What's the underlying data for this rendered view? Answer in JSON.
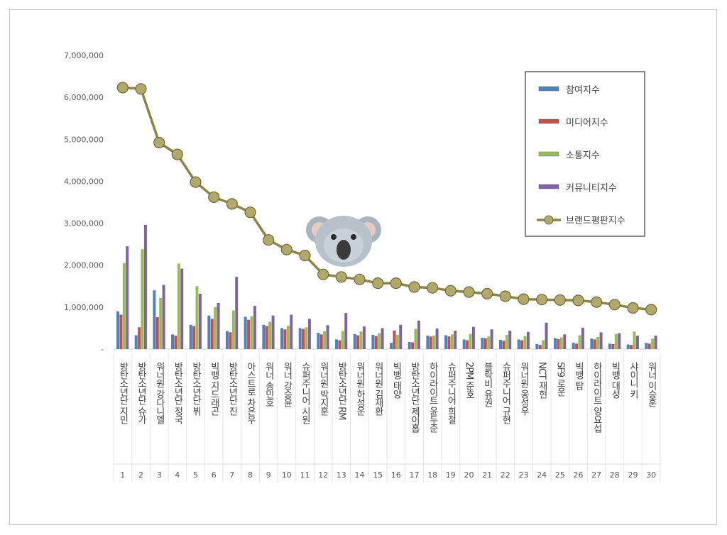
{
  "chart_data": {
    "type": "bar",
    "title": "",
    "xlabel": "",
    "ylabel": "",
    "ylim": [
      0,
      7000000
    ],
    "yticks": [
      "-",
      "1,000,000",
      "2,000,000",
      "3,000,000",
      "4,000,000",
      "5,000,000",
      "6,000,000",
      "7,000,000"
    ],
    "grid": false,
    "legend_position": "top-right",
    "ranks": [
      "1",
      "2",
      "3",
      "4",
      "5",
      "6",
      "7",
      "8",
      "9",
      "10",
      "11",
      "12",
      "13",
      "14",
      "15",
      "16",
      "17",
      "18",
      "19",
      "20",
      "21",
      "22",
      "23",
      "24",
      "25",
      "26",
      "27",
      "28",
      "29",
      "30"
    ],
    "categories": [
      "방탄소년단 지민",
      "방탄소년단 슈가",
      "워너원 강다니엘",
      "방탄소년단 정국",
      "방탄소년단 뷔",
      "빅뱅 지드래곤",
      "방탄소년단 진",
      "아스트로 차은우",
      "워너 송민호",
      "워너 강승윤",
      "슈퍼주니어 시원",
      "워너원 박지훈",
      "방탄소년단 RM",
      "워너원 하성운",
      "워너원 김재환",
      "빅뱅 태양",
      "방탄소년단 제이홉",
      "하이라이트 윤두준",
      "슈퍼주니어 희철",
      "2PM 준호",
      "블락비 유권",
      "슈퍼주니어 규현",
      "워너원 옹성우",
      "NCT 재현",
      "SF9 로운",
      "빅뱅 탑",
      "하이라이트 양요섭",
      "빅뱅 대성",
      "샤이니 키",
      "워너 이승훈"
    ],
    "series": [
      {
        "name": "참여지수",
        "kind": "bar",
        "color": "#4f81bd",
        "values": [
          900000,
          330000,
          1400000,
          350000,
          580000,
          800000,
          430000,
          770000,
          580000,
          500000,
          500000,
          390000,
          230000,
          360000,
          340000,
          150000,
          170000,
          320000,
          330000,
          230000,
          270000,
          220000,
          230000,
          120000,
          260000,
          150000,
          250000,
          130000,
          110000,
          150000
        ]
      },
      {
        "name": "미디어지수",
        "kind": "bar",
        "color": "#c0504d",
        "values": [
          820000,
          520000,
          760000,
          320000,
          550000,
          720000,
          400000,
          700000,
          550000,
          470000,
          480000,
          350000,
          210000,
          330000,
          310000,
          440000,
          160000,
          300000,
          300000,
          210000,
          260000,
          200000,
          210000,
          100000,
          240000,
          130000,
          230000,
          120000,
          100000,
          130000
        ]
      },
      {
        "name": "소통지수",
        "kind": "bar",
        "color": "#9bbb59",
        "values": [
          2050000,
          2380000,
          1220000,
          2040000,
          1500000,
          1000000,
          920000,
          780000,
          650000,
          560000,
          520000,
          430000,
          430000,
          420000,
          380000,
          340000,
          480000,
          320000,
          350000,
          360000,
          300000,
          340000,
          310000,
          210000,
          280000,
          330000,
          290000,
          360000,
          420000,
          250000
        ]
      },
      {
        "name": "커뮤니티지수",
        "kind": "bar",
        "color": "#8064a2",
        "values": [
          2450000,
          2960000,
          1530000,
          1920000,
          1320000,
          1100000,
          1720000,
          1030000,
          800000,
          820000,
          720000,
          570000,
          860000,
          540000,
          500000,
          580000,
          680000,
          490000,
          440000,
          530000,
          470000,
          440000,
          410000,
          630000,
          350000,
          510000,
          400000,
          380000,
          320000,
          320000
        ]
      },
      {
        "name": "브랜드평판지수",
        "kind": "line",
        "color": "#8c8548",
        "values": [
          6230000,
          6200000,
          4920000,
          4640000,
          3980000,
          3620000,
          3460000,
          3260000,
          2600000,
          2370000,
          2230000,
          1780000,
          1720000,
          1660000,
          1570000,
          1570000,
          1480000,
          1460000,
          1390000,
          1360000,
          1320000,
          1260000,
          1190000,
          1180000,
          1170000,
          1160000,
          1120000,
          1060000,
          980000,
          940000
        ]
      }
    ]
  }
}
